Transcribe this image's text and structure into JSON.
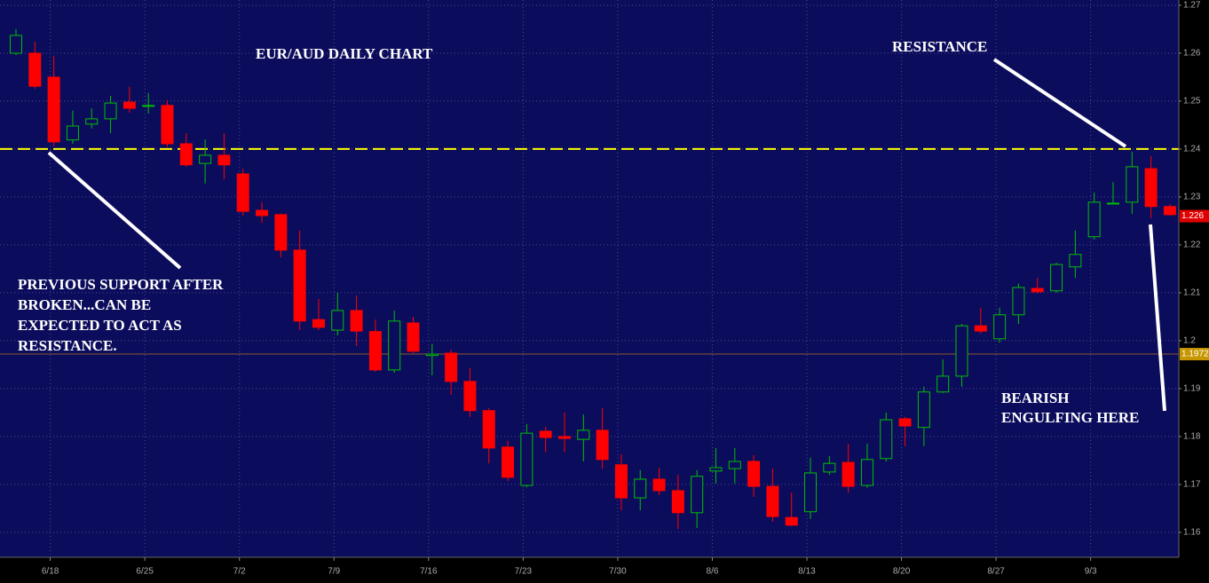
{
  "chart_data": {
    "type": "candlestick",
    "title": "EUR/AUD DAILY CHART",
    "categories": [
      null,
      null,
      "6/18",
      null,
      null,
      null,
      null,
      "6/25",
      null,
      null,
      null,
      null,
      "7/2",
      null,
      null,
      null,
      null,
      "7/9",
      null,
      null,
      null,
      null,
      "7/16",
      null,
      null,
      null,
      null,
      "7/23",
      null,
      null,
      null,
      null,
      "7/30",
      null,
      null,
      null,
      null,
      "8/6",
      null,
      null,
      null,
      null,
      "8/13",
      null,
      null,
      null,
      null,
      "8/20",
      null,
      null,
      null,
      null,
      "8/27",
      null,
      null,
      null,
      null,
      "9/3",
      null,
      null,
      null,
      null
    ],
    "open": [
      1.26,
      1.26,
      1.255,
      1.2419,
      1.2452,
      1.2463,
      1.2498,
      1.2489,
      1.2491,
      1.2411,
      1.237,
      1.2387,
      1.2348,
      1.2272,
      1.2263,
      1.2189,
      1.2044,
      1.2022,
      1.2063,
      1.2019,
      1.1939,
      1.2037,
      1.1969,
      1.1974,
      1.1915,
      1.1854,
      1.1778,
      1.1698,
      1.1811,
      1.18,
      1.1794,
      1.1813,
      1.1741,
      1.1672,
      1.1711,
      1.1687,
      1.1641,
      1.1728,
      1.1733,
      1.1748,
      1.1696,
      1.1631,
      1.1643,
      1.1726,
      1.1746,
      1.1698,
      1.1754,
      1.1837,
      1.1819,
      1.1893,
      1.1926,
      1.2031,
      1.2004,
      1.2054,
      1.2109,
      1.2104,
      1.2154,
      1.2217,
      1.2287,
      1.2289,
      1.2359,
      1.228
    ],
    "high": [
      1.265,
      1.2624,
      1.2594,
      1.248,
      1.2485,
      1.2511,
      1.253,
      1.2517,
      1.2502,
      1.2433,
      1.242,
      1.2433,
      1.2359,
      1.2289,
      1.2265,
      1.223,
      1.2087,
      1.21,
      1.2094,
      1.2044,
      1.2063,
      1.205,
      1.1993,
      1.1981,
      1.1943,
      1.1859,
      1.1791,
      1.1826,
      1.182,
      1.185,
      1.1846,
      1.1859,
      1.1763,
      1.173,
      1.1735,
      1.172,
      1.173,
      1.1776,
      1.1776,
      1.1761,
      1.1733,
      1.1683,
      1.1756,
      1.1759,
      1.1785,
      1.1785,
      1.185,
      1.1841,
      1.1904,
      1.1961,
      1.2035,
      1.2069,
      1.2069,
      1.2119,
      1.2131,
      1.2163,
      1.223,
      1.2309,
      1.2331,
      1.2394,
      1.2385,
      1.2285
    ],
    "low": [
      1.2596,
      1.2526,
      1.2406,
      1.2411,
      1.2443,
      1.2433,
      1.2476,
      1.2474,
      1.2404,
      1.2363,
      1.2328,
      1.2337,
      1.2261,
      1.2246,
      1.2174,
      1.2022,
      1.2022,
      1.2011,
      1.1989,
      1.1935,
      1.1933,
      1.1974,
      1.1928,
      1.1887,
      1.1841,
      1.1744,
      1.1707,
      1.1694,
      1.1767,
      1.1767,
      1.1748,
      1.1733,
      1.1646,
      1.1646,
      1.1678,
      1.1607,
      1.1609,
      1.1702,
      1.1702,
      1.1674,
      1.1622,
      1.1613,
      1.1628,
      1.172,
      1.1683,
      1.1693,
      1.1748,
      1.178,
      1.178,
      1.1891,
      1.1904,
      1.2015,
      1.1996,
      1.2035,
      1.2098,
      1.21,
      1.2131,
      1.2211,
      1.2285,
      1.2265,
      1.2256,
      1.2261
    ],
    "close": [
      1.2637,
      1.2531,
      1.2415,
      1.2448,
      1.2463,
      1.2496,
      1.2485,
      1.2491,
      1.2411,
      1.2367,
      1.2387,
      1.2367,
      1.227,
      1.2261,
      1.2189,
      1.2041,
      1.2028,
      1.2063,
      1.202,
      1.1939,
      1.2041,
      1.1978,
      1.1972,
      1.1915,
      1.1854,
      1.1776,
      1.1715,
      1.1807,
      1.1798,
      1.1796,
      1.1813,
      1.1752,
      1.1672,
      1.1711,
      1.1687,
      1.1641,
      1.1717,
      1.1735,
      1.1748,
      1.1696,
      1.1633,
      1.1615,
      1.1724,
      1.1744,
      1.1696,
      1.1752,
      1.1835,
      1.1822,
      1.1893,
      1.1926,
      1.2031,
      1.202,
      1.2054,
      1.2111,
      1.2102,
      1.2159,
      1.218,
      1.2289,
      1.2287,
      1.2363,
      1.228,
      1.2263
    ],
    "up_color": "#00c000",
    "down_color": "#ff0000",
    "ylim": [
      1.1548,
      1.2711
    ],
    "yticks": [
      1.16,
      1.17,
      1.18,
      1.19,
      1.2,
      1.21,
      1.22,
      1.23,
      1.24,
      1.25,
      1.26,
      1.27
    ],
    "grid": true,
    "reference_lines": [
      {
        "value": 1.24,
        "color": "#ffff00",
        "dashed": true
      },
      {
        "value": 1.1972,
        "color": "#8b5a2b",
        "dashed": false
      }
    ],
    "price_labels": [
      {
        "value": 1.226,
        "color": "#e00000"
      },
      {
        "value": 1.1972,
        "color": "#c89600"
      }
    ],
    "annotations": {
      "resistance": "RESISTANCE",
      "previous_support": [
        "PREVIOUS SUPPORT AFTER",
        "BROKEN...CAN BE",
        "EXPECTED TO ACT AS",
        "RESISTANCE."
      ],
      "bearish": [
        "BEARISH",
        "ENGULFING HERE"
      ]
    }
  }
}
